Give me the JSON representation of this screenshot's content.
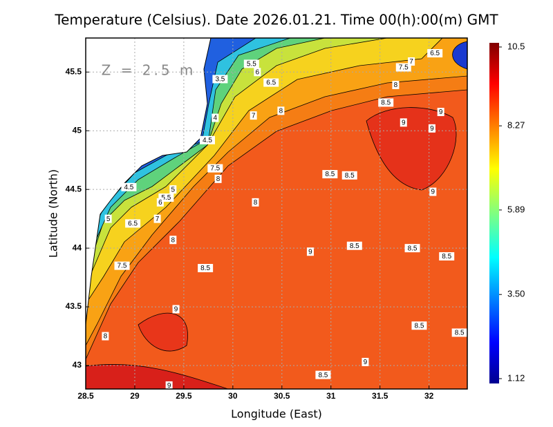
{
  "chart_data": {
    "type": "contour-map",
    "title": "Temperature (Celsius). Date 2026.01.21. Time 00(h):00(m) GMT",
    "x_label": "Longitude (East)",
    "y_label": "Latitude (North)",
    "annotation": "Z = 2.5 m",
    "xlim": [
      28.5,
      32.39
    ],
    "ylim": [
      42.8,
      45.79
    ],
    "xticks": [
      28.5,
      29,
      29.5,
      30,
      30.5,
      31,
      31.5,
      32
    ],
    "yticks": [
      43,
      43.5,
      44,
      44.5,
      45,
      45.5
    ],
    "grid": true,
    "colorbar": {
      "lim": [
        1.12,
        10.5
      ],
      "ticks": [
        10.5,
        8.27,
        5.89,
        {
          "value": 3.5,
          "label": "3.50"
        },
        1.12
      ]
    },
    "contour_labels": [
      {
        "value": 5.5,
        "lon": 30.19,
        "lat": 45.57
      },
      {
        "value": 6,
        "lon": 30.25,
        "lat": 45.5
      },
      {
        "value": 3.5,
        "lon": 29.87,
        "lat": 45.44
      },
      {
        "value": 6.5,
        "lon": 30.39,
        "lat": 45.41
      },
      {
        "value": 7.5,
        "lon": 31.74,
        "lat": 45.54
      },
      {
        "value": 7,
        "lon": 31.82,
        "lat": 45.59
      },
      {
        "value": 6.5,
        "lon": 32.06,
        "lat": 45.66
      },
      {
        "value": 8,
        "lon": 31.66,
        "lat": 45.39
      },
      {
        "value": 8.5,
        "lon": 31.56,
        "lat": 45.24
      },
      {
        "value": 8,
        "lon": 30.49,
        "lat": 45.17
      },
      {
        "value": 7,
        "lon": 30.21,
        "lat": 45.13
      },
      {
        "value": 4,
        "lon": 29.82,
        "lat": 45.11
      },
      {
        "value": 9,
        "lon": 32.12,
        "lat": 45.16
      },
      {
        "value": 9,
        "lon": 31.74,
        "lat": 45.07
      },
      {
        "value": 9,
        "lon": 32.03,
        "lat": 45.02
      },
      {
        "value": 4.5,
        "lon": 29.74,
        "lat": 44.92
      },
      {
        "value": 7.5,
        "lon": 29.82,
        "lat": 44.68
      },
      {
        "value": 8,
        "lon": 29.85,
        "lat": 44.59
      },
      {
        "value": 8.5,
        "lon": 30.99,
        "lat": 44.63
      },
      {
        "value": 8.5,
        "lon": 31.19,
        "lat": 44.62
      },
      {
        "value": 9,
        "lon": 32.04,
        "lat": 44.48
      },
      {
        "value": 4.5,
        "lon": 28.94,
        "lat": 44.52
      },
      {
        "value": 5,
        "lon": 29.39,
        "lat": 44.5
      },
      {
        "value": 5.5,
        "lon": 29.32,
        "lat": 44.43
      },
      {
        "value": 6,
        "lon": 29.26,
        "lat": 44.39
      },
      {
        "value": 8,
        "lon": 30.23,
        "lat": 44.39
      },
      {
        "value": 5,
        "lon": 28.73,
        "lat": 44.25
      },
      {
        "value": 6.5,
        "lon": 28.98,
        "lat": 44.21
      },
      {
        "value": 7,
        "lon": 29.23,
        "lat": 44.25
      },
      {
        "value": 8,
        "lon": 29.39,
        "lat": 44.07
      },
      {
        "value": 9,
        "lon": 30.79,
        "lat": 43.97
      },
      {
        "value": 8.5,
        "lon": 31.24,
        "lat": 44.02
      },
      {
        "value": 8.5,
        "lon": 31.83,
        "lat": 44.0
      },
      {
        "value": 8.5,
        "lon": 32.18,
        "lat": 43.93
      },
      {
        "value": 7.5,
        "lon": 28.87,
        "lat": 43.85
      },
      {
        "value": 8.5,
        "lon": 29.72,
        "lat": 43.83
      },
      {
        "value": 9,
        "lon": 29.42,
        "lat": 43.48
      },
      {
        "value": 8.5,
        "lon": 31.9,
        "lat": 43.34
      },
      {
        "value": 8.5,
        "lon": 32.31,
        "lat": 43.28
      },
      {
        "value": 8,
        "lon": 28.7,
        "lat": 43.25
      },
      {
        "value": 9,
        "lon": 31.35,
        "lat": 43.03
      },
      {
        "value": 8.5,
        "lon": 30.92,
        "lat": 42.92
      },
      {
        "value": 9,
        "lon": 29.35,
        "lat": 42.83
      }
    ]
  }
}
